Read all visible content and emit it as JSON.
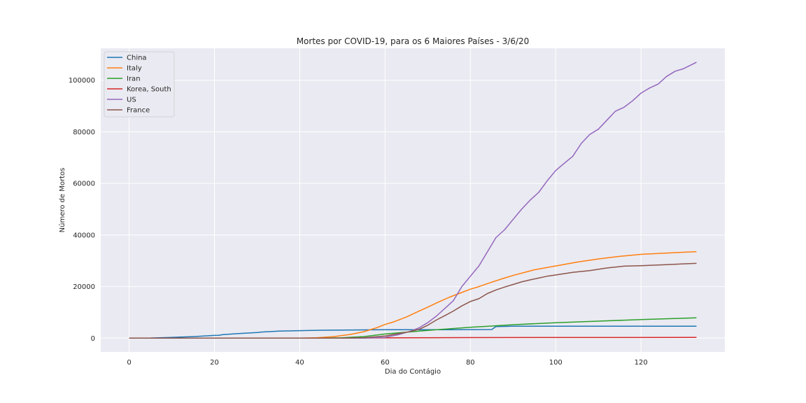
{
  "chart_data": {
    "type": "line",
    "title": "Mortes por COVID-19, para os 6 Maiores Países - 3/6/20",
    "xlabel": "Dia do Contágio",
    "ylabel": "Número de Mortos",
    "xlim": [
      -6.65,
      139.65
    ],
    "ylim": [
      -5350,
      112400
    ],
    "xticks": [
      0,
      20,
      40,
      60,
      80,
      100,
      120
    ],
    "yticks": [
      0,
      20000,
      40000,
      60000,
      80000,
      100000
    ],
    "grid": true,
    "legend_position": "top-left",
    "series": [
      {
        "name": "China",
        "color": "#1f77b4",
        "x": [
          0,
          5,
          10,
          15,
          20,
          21,
          22,
          25,
          30,
          31,
          35,
          40,
          45,
          50,
          55,
          60,
          65,
          70,
          75,
          80,
          85,
          86,
          90,
          100,
          110,
          120,
          133
        ],
        "y": [
          0,
          60,
          300,
          600,
          1050,
          1100,
          1350,
          1700,
          2200,
          2350,
          2700,
          2900,
          3050,
          3150,
          3200,
          3250,
          3270,
          3280,
          3290,
          3300,
          3320,
          4500,
          4620,
          4630,
          4635,
          4640,
          4640
        ]
      },
      {
        "name": "Italy",
        "color": "#ff7f0e",
        "x": [
          0,
          40,
          44,
          48,
          52,
          55,
          58,
          60,
          62,
          65,
          68,
          70,
          72,
          75,
          78,
          80,
          82,
          85,
          88,
          90,
          95,
          100,
          105,
          110,
          115,
          120,
          125,
          130,
          133
        ],
        "y": [
          0,
          0,
          150,
          600,
          1450,
          2500,
          4000,
          5300,
          6300,
          8200,
          10500,
          12000,
          13600,
          15800,
          17700,
          19000,
          20000,
          21700,
          23300,
          24300,
          26500,
          28000,
          29500,
          30700,
          31700,
          32500,
          32900,
          33300,
          33500
        ]
      },
      {
        "name": "Iran",
        "color": "#2ca02c",
        "x": [
          0,
          45,
          50,
          55,
          60,
          65,
          70,
          75,
          80,
          85,
          90,
          100,
          110,
          120,
          133
        ],
        "y": [
          0,
          0,
          150,
          600,
          1600,
          2300,
          3000,
          3600,
          4200,
          4700,
          5200,
          6000,
          6600,
          7200,
          7900
        ]
      },
      {
        "name": "Korea, South",
        "color": "#d62728",
        "x": [
          0,
          50,
          60,
          80,
          100,
          133
        ],
        "y": [
          0,
          20,
          100,
          200,
          250,
          270
        ]
      },
      {
        "name": "US",
        "color": "#9467bd",
        "x": [
          0,
          55,
          60,
          63,
          66,
          68,
          70,
          72,
          74,
          76,
          78,
          80,
          82,
          84,
          86,
          88,
          90,
          92,
          94,
          96,
          98,
          100,
          102,
          104,
          106,
          108,
          110,
          112,
          114,
          116,
          118,
          120,
          122,
          124,
          126,
          128,
          130,
          133
        ],
        "y": [
          0,
          0,
          300,
          1300,
          2700,
          4000,
          6000,
          8500,
          11500,
          14500,
          20000,
          24000,
          28000,
          33500,
          39000,
          42000,
          46000,
          50000,
          53500,
          56500,
          61000,
          65000,
          67800,
          70500,
          75500,
          79000,
          81000,
          84500,
          88000,
          89500,
          92000,
          95000,
          97000,
          98500,
          101500,
          103500,
          104500,
          107000
        ]
      },
      {
        "name": "France",
        "color": "#8c564b",
        "x": [
          0,
          50,
          55,
          60,
          63,
          66,
          68,
          70,
          72,
          74,
          76,
          78,
          80,
          82,
          84,
          86,
          88,
          90,
          92,
          94,
          96,
          98,
          100,
          104,
          108,
          112,
          116,
          120,
          126,
          130,
          133
        ],
        "y": [
          0,
          0,
          150,
          800,
          1700,
          2600,
          3400,
          5000,
          7000,
          8700,
          10500,
          12500,
          14200,
          15300,
          17300,
          18700,
          19800,
          20800,
          21800,
          22600,
          23300,
          24000,
          24500,
          25500,
          26200,
          27200,
          27900,
          28100,
          28500,
          28800,
          29000
        ]
      }
    ]
  }
}
